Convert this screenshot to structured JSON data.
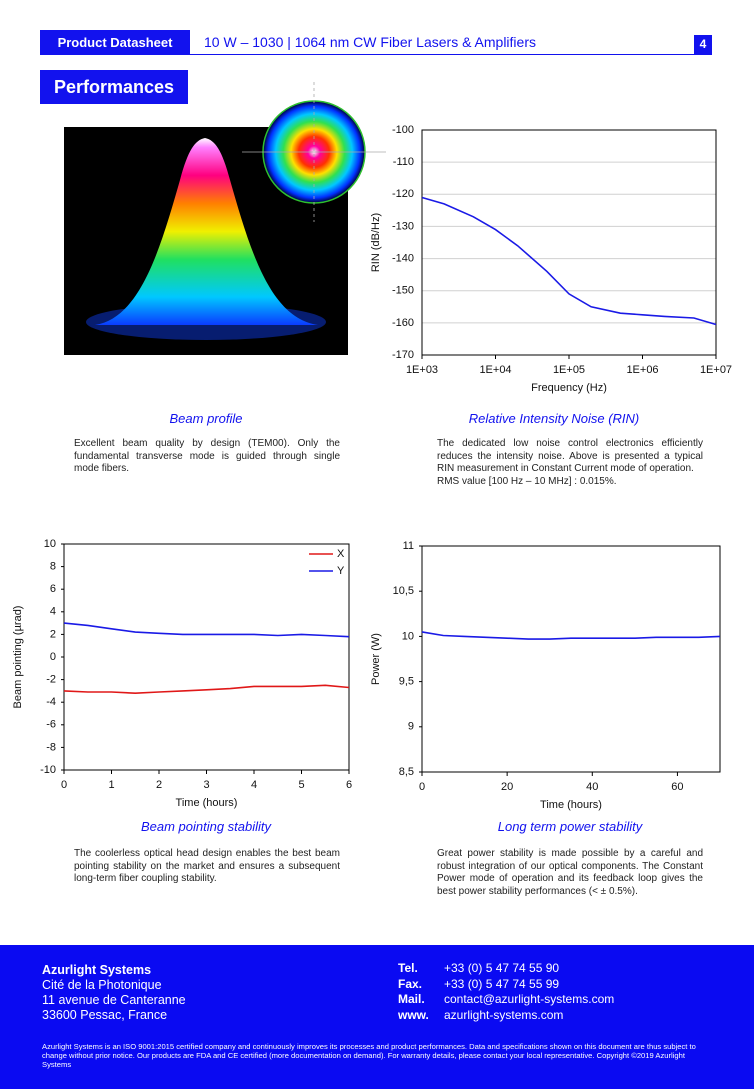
{
  "header": {
    "label": "Product Datasheet",
    "title": "10 W – 1030 | 1064 nm CW Fiber Lasers & Amplifiers",
    "page": "4"
  },
  "section": "Performances",
  "beam_profile": {
    "caption": "Beam profile",
    "text": "Excellent beam quality by design (TEM00). Only the fundamental transverse mode is guided through single mode fibers."
  },
  "chart_data": [
    {
      "type": "line",
      "title": "Relative Intensity Noise (RIN)",
      "text": [
        "The dedicated low noise control electronics efficiently reduces the intensity noise. Above is presented a typical RIN measurement in Constant Current mode of operation.",
        "RMS value [100 Hz – 10 MHz] : 0.015%."
      ],
      "xlabel": "Frequency (Hz)",
      "ylabel": "RIN (dB/Hz)",
      "log_x": true,
      "grid": true,
      "color": "#1a1ae6",
      "x": [
        1000,
        2000,
        5000,
        10000,
        20000,
        50000,
        100000,
        200000,
        500000,
        1000000,
        2000000,
        5000000,
        10000000
      ],
      "values": [
        -121,
        -123,
        -127,
        -131,
        -136,
        -144,
        -151,
        -155,
        -157,
        -157.5,
        -158,
        -158.5,
        -160.5
      ],
      "xlim": [
        1000,
        10000000
      ],
      "xticks": [
        {
          "value": 1000,
          "label": "1E+03"
        },
        {
          "value": 10000,
          "label": "1E+04"
        },
        {
          "value": 100000,
          "label": "1E+05"
        },
        {
          "value": 1000000,
          "label": "1E+06"
        },
        {
          "value": 10000000,
          "label": "1E+07"
        }
      ],
      "ylim": [
        -170,
        -100
      ],
      "yticks": [
        -100,
        -110,
        -120,
        -130,
        -140,
        -150,
        -160,
        -170
      ]
    },
    {
      "type": "line",
      "title": "Beam pointing stability",
      "text": [
        "The coolerless optical head design enables the best beam pointing stability on the market and ensures a subsequent long-term fiber coupling stability."
      ],
      "xlabel": "Time (hours)",
      "ylabel": "Beam pointing  (µrad)",
      "grid": false,
      "legend": "top-right",
      "x": [
        0,
        0.5,
        1,
        1.5,
        2,
        2.5,
        3,
        3.5,
        4,
        4.5,
        5,
        5.5,
        6
      ],
      "series": [
        {
          "name": "X",
          "color": "#e01818",
          "values": [
            -3,
            -3.1,
            -3.1,
            -3.2,
            -3.1,
            -3,
            -2.9,
            -2.8,
            -2.6,
            -2.6,
            -2.6,
            -2.5,
            -2.7
          ]
        },
        {
          "name": "Y",
          "color": "#1a1ae6",
          "values": [
            3,
            2.8,
            2.5,
            2.2,
            2.1,
            2,
            2,
            2,
            2,
            1.9,
            2,
            1.9,
            1.8
          ]
        }
      ],
      "xlim": [
        0,
        6
      ],
      "xticks": [
        0,
        1,
        2,
        3,
        4,
        5,
        6
      ],
      "ylim": [
        -10,
        10
      ],
      "yticks": [
        -10,
        -8,
        -6,
        -4,
        -2,
        0,
        2,
        4,
        6,
        8,
        10
      ]
    },
    {
      "type": "line",
      "title": "Long term power stability",
      "text": [
        "Great power stability is made possible by a careful and robust integration of our optical components. The Constant Power mode of operation and its feedback loop gives the best power stability performances (< ± 0.5%)."
      ],
      "xlabel": "Time (hours)",
      "ylabel": "Power (W)",
      "grid": false,
      "color": "#1a1ae6",
      "x": [
        0,
        5,
        10,
        15,
        20,
        25,
        30,
        35,
        40,
        45,
        50,
        55,
        60,
        65,
        70
      ],
      "values": [
        10.05,
        10.01,
        10,
        9.99,
        9.98,
        9.97,
        9.97,
        9.98,
        9.98,
        9.98,
        9.98,
        9.99,
        9.99,
        9.99,
        10
      ],
      "xlim": [
        0,
        70
      ],
      "xticks": [
        0,
        20,
        40,
        60
      ],
      "ylim": [
        8.5,
        11
      ],
      "yticks": [
        {
          "value": 8.5,
          "label": "8,5"
        },
        9,
        {
          "value": 9.5,
          "label": "9,5"
        },
        10,
        {
          "value": 10.5,
          "label": "10,5"
        },
        11
      ]
    }
  ],
  "footer": {
    "company": [
      "Azurlight Systems",
      "Cité de la Photonique",
      "11 avenue de Canteranne",
      "33600 Pessac, France"
    ],
    "contacts": [
      {
        "label": "Tel.",
        "value": "+33 (0) 5 47 74 55 90"
      },
      {
        "label": "Fax.",
        "value": "+33 (0) 5 47 74 55 99"
      },
      {
        "label": "Mail.",
        "value": "contact@azurlight-systems.com"
      },
      {
        "label": "www.",
        "value": "azurlight-systems.com"
      }
    ],
    "legal": "Azurlight Systems is an ISO 9001:2015 certified company and continuously improves its processes and product performances. Data and specifications shown on this document are thus subject to change without prior notice. Our products are FDA and CE certified (more documentation on demand). For warranty details, please contact your local representative. Copyright ©2019 Azurlight Systems"
  }
}
